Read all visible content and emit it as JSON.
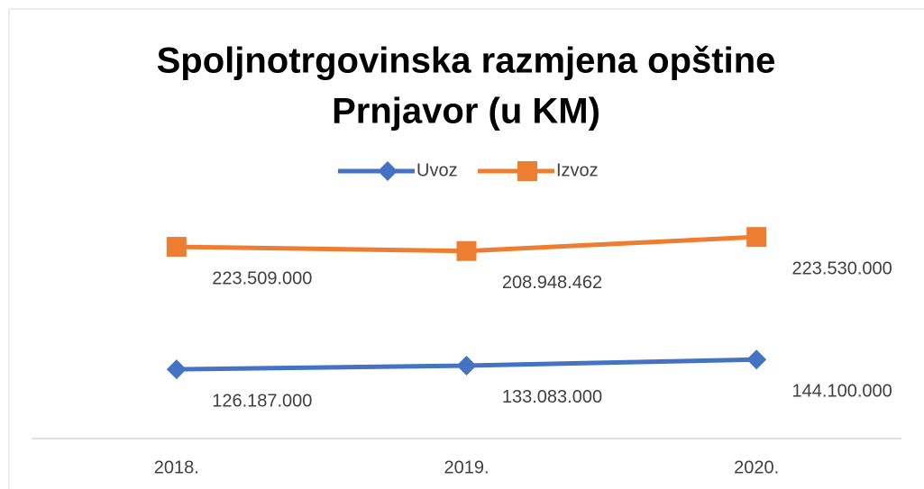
{
  "chart_data": {
    "type": "line",
    "stacked": true,
    "title": [
      "Spoljnotrgovinska razmjena opštine",
      "Prnjavor (u KM)"
    ],
    "categories": [
      "2018.",
      "2019.",
      "2020."
    ],
    "series": [
      {
        "name": "Uvoz",
        "color": "#4472c4",
        "marker": "diamond",
        "values": [
          126187000,
          133083000,
          144100000
        ],
        "value_labels": [
          "126.187.000",
          "133.083.000",
          "144.100.000"
        ]
      },
      {
        "name": "Izvoz",
        "color": "#ed7d31",
        "marker": "square",
        "values": [
          223509000,
          208948462,
          223530000
        ],
        "value_labels": [
          "223.509.000",
          "208.948.462",
          "223.530.000"
        ]
      }
    ],
    "ylim": [
      0,
      450000000
    ],
    "legend": "top"
  }
}
